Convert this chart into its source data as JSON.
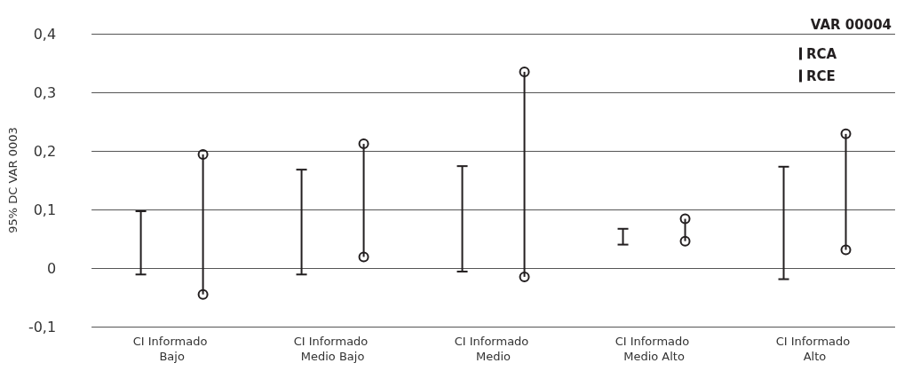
{
  "chart_data": {
    "type": "bar",
    "ylabel": "95% DC VAR 0003",
    "legend_title": "VAR 00004",
    "legend": "top right",
    "grid": "y",
    "categories": [
      "CI Informado Bajo",
      "CI Informado Medio Bajo",
      "CI Informado Medio",
      "CI Informado Medio Alto",
      "CI Informado Alto"
    ],
    "ylim": [
      -0.1,
      0.4
    ],
    "yticks": [
      {
        "value": -0.1,
        "label": "-0,1"
      },
      0,
      {
        "value": 0.1,
        "label": "0,1"
      },
      {
        "value": 0.2,
        "label": "0,2"
      },
      {
        "value": 0.3,
        "label": "0,3"
      },
      {
        "value": 0.4,
        "label": "0,4"
      }
    ],
    "series": [
      {
        "name": "RCA",
        "color": "#231f20",
        "marker": "none",
        "base": [
          -0.011,
          -0.011,
          -0.006,
          0.04,
          -0.019
        ],
        "values": [
          0.108,
          0.179,
          0.18,
          0.027,
          0.192
        ]
      },
      {
        "name": "RCE",
        "color": "#231f20",
        "marker": "circle",
        "base": [
          -0.045,
          0.019,
          -0.015,
          0.046,
          0.031
        ],
        "values": [
          0.239,
          0.193,
          0.35,
          0.038,
          0.198
        ]
      }
    ]
  }
}
